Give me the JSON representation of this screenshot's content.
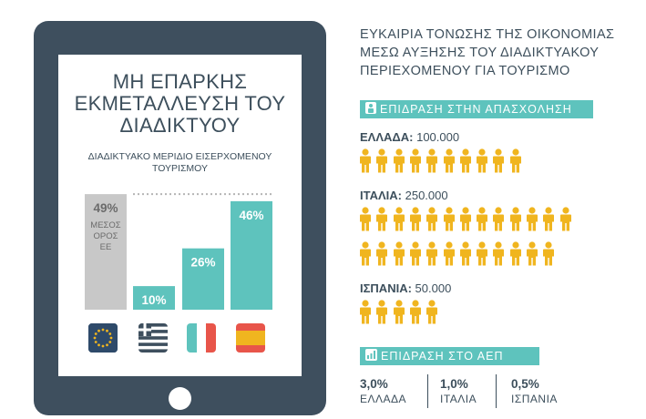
{
  "chart_data": {
    "type": "bar",
    "title": "ΜΗ ΕΠΑΡΚΗΣ ΕΚΜΕΤΑΛΛΕΥΣΗ ΤΟΥ ΔΙΑΔΙΚΤΥΟΥ",
    "subtitle": "ΔΙΑΔΙΚΤΥΑΚΟ ΜΕΡΙΔΙΟ ΕΙΣΕΡΧΟΜΕΝΟΥ ΤΟΥΡΙΣΜΟΥ",
    "categories": [
      "eu",
      "gr",
      "it",
      "es"
    ],
    "values": [
      49,
      10,
      26,
      46
    ],
    "value_labels": [
      "49%",
      "10%",
      "26%",
      "46%"
    ],
    "average_label": "ΜΕΣΟΣ ΟΡΟΣ ΕΕ",
    "ylim": [
      0,
      56
    ],
    "colors": {
      "average": "#c8c8c8",
      "bar": "#5ec3bd",
      "label_on_gray": "#6b6b6b",
      "label_on_bar": "#ffffff"
    }
  },
  "flags": [
    "eu-flag",
    "greece-flag",
    "italy-flag",
    "spain-flag"
  ],
  "main_title": "ΕΥΚΑΙΡΙΑ ΤΟΝΩΣΗΣ ΤΗΣ ΟΙΚΟΝΟΜΙΑΣ ΜΕΣΩ ΑΥΞΗΣΗΣ ΤΟΥ ΔΙΑΔΙΚΤΥΑΚΟΥ ΠΕΡΙΕΧΟΜΕΝΟΥ ΓΙΑ ΤΟΥΡΙΣΜΟ",
  "jobs_banner": "ΕΠΙΔΡΑΣΗ ΣΤΗΝ ΑΠΑΣΧΟΛΗΣΗ",
  "jobs": [
    {
      "country": "ΕΛΛΑΔΑ:",
      "value": "100.000",
      "icons": 10
    },
    {
      "country": "ΙΤΑΛΙΑ:",
      "value": "250.000",
      "icons": 25
    },
    {
      "country": "ΙΣΠΑΝΙΑ:",
      "value": "50.000",
      "icons": 5
    }
  ],
  "gdp_banner": "ΕΠΙΔΡΑΣΗ ΣΤΟ ΑΕΠ",
  "gdp": [
    {
      "value": "3,0%",
      "country": "ΕΛΛΑΔΑ"
    },
    {
      "value": "1,0%",
      "country": "ΙΤΑΛΙΑ"
    },
    {
      "value": "0,5%",
      "country": "ΙΣΠΑΝΙΑ"
    }
  ],
  "colors": {
    "tablet": "#3e4f5e",
    "accent": "#5ec3bd",
    "person": "#f0b51f",
    "text": "#3d4f5c"
  }
}
